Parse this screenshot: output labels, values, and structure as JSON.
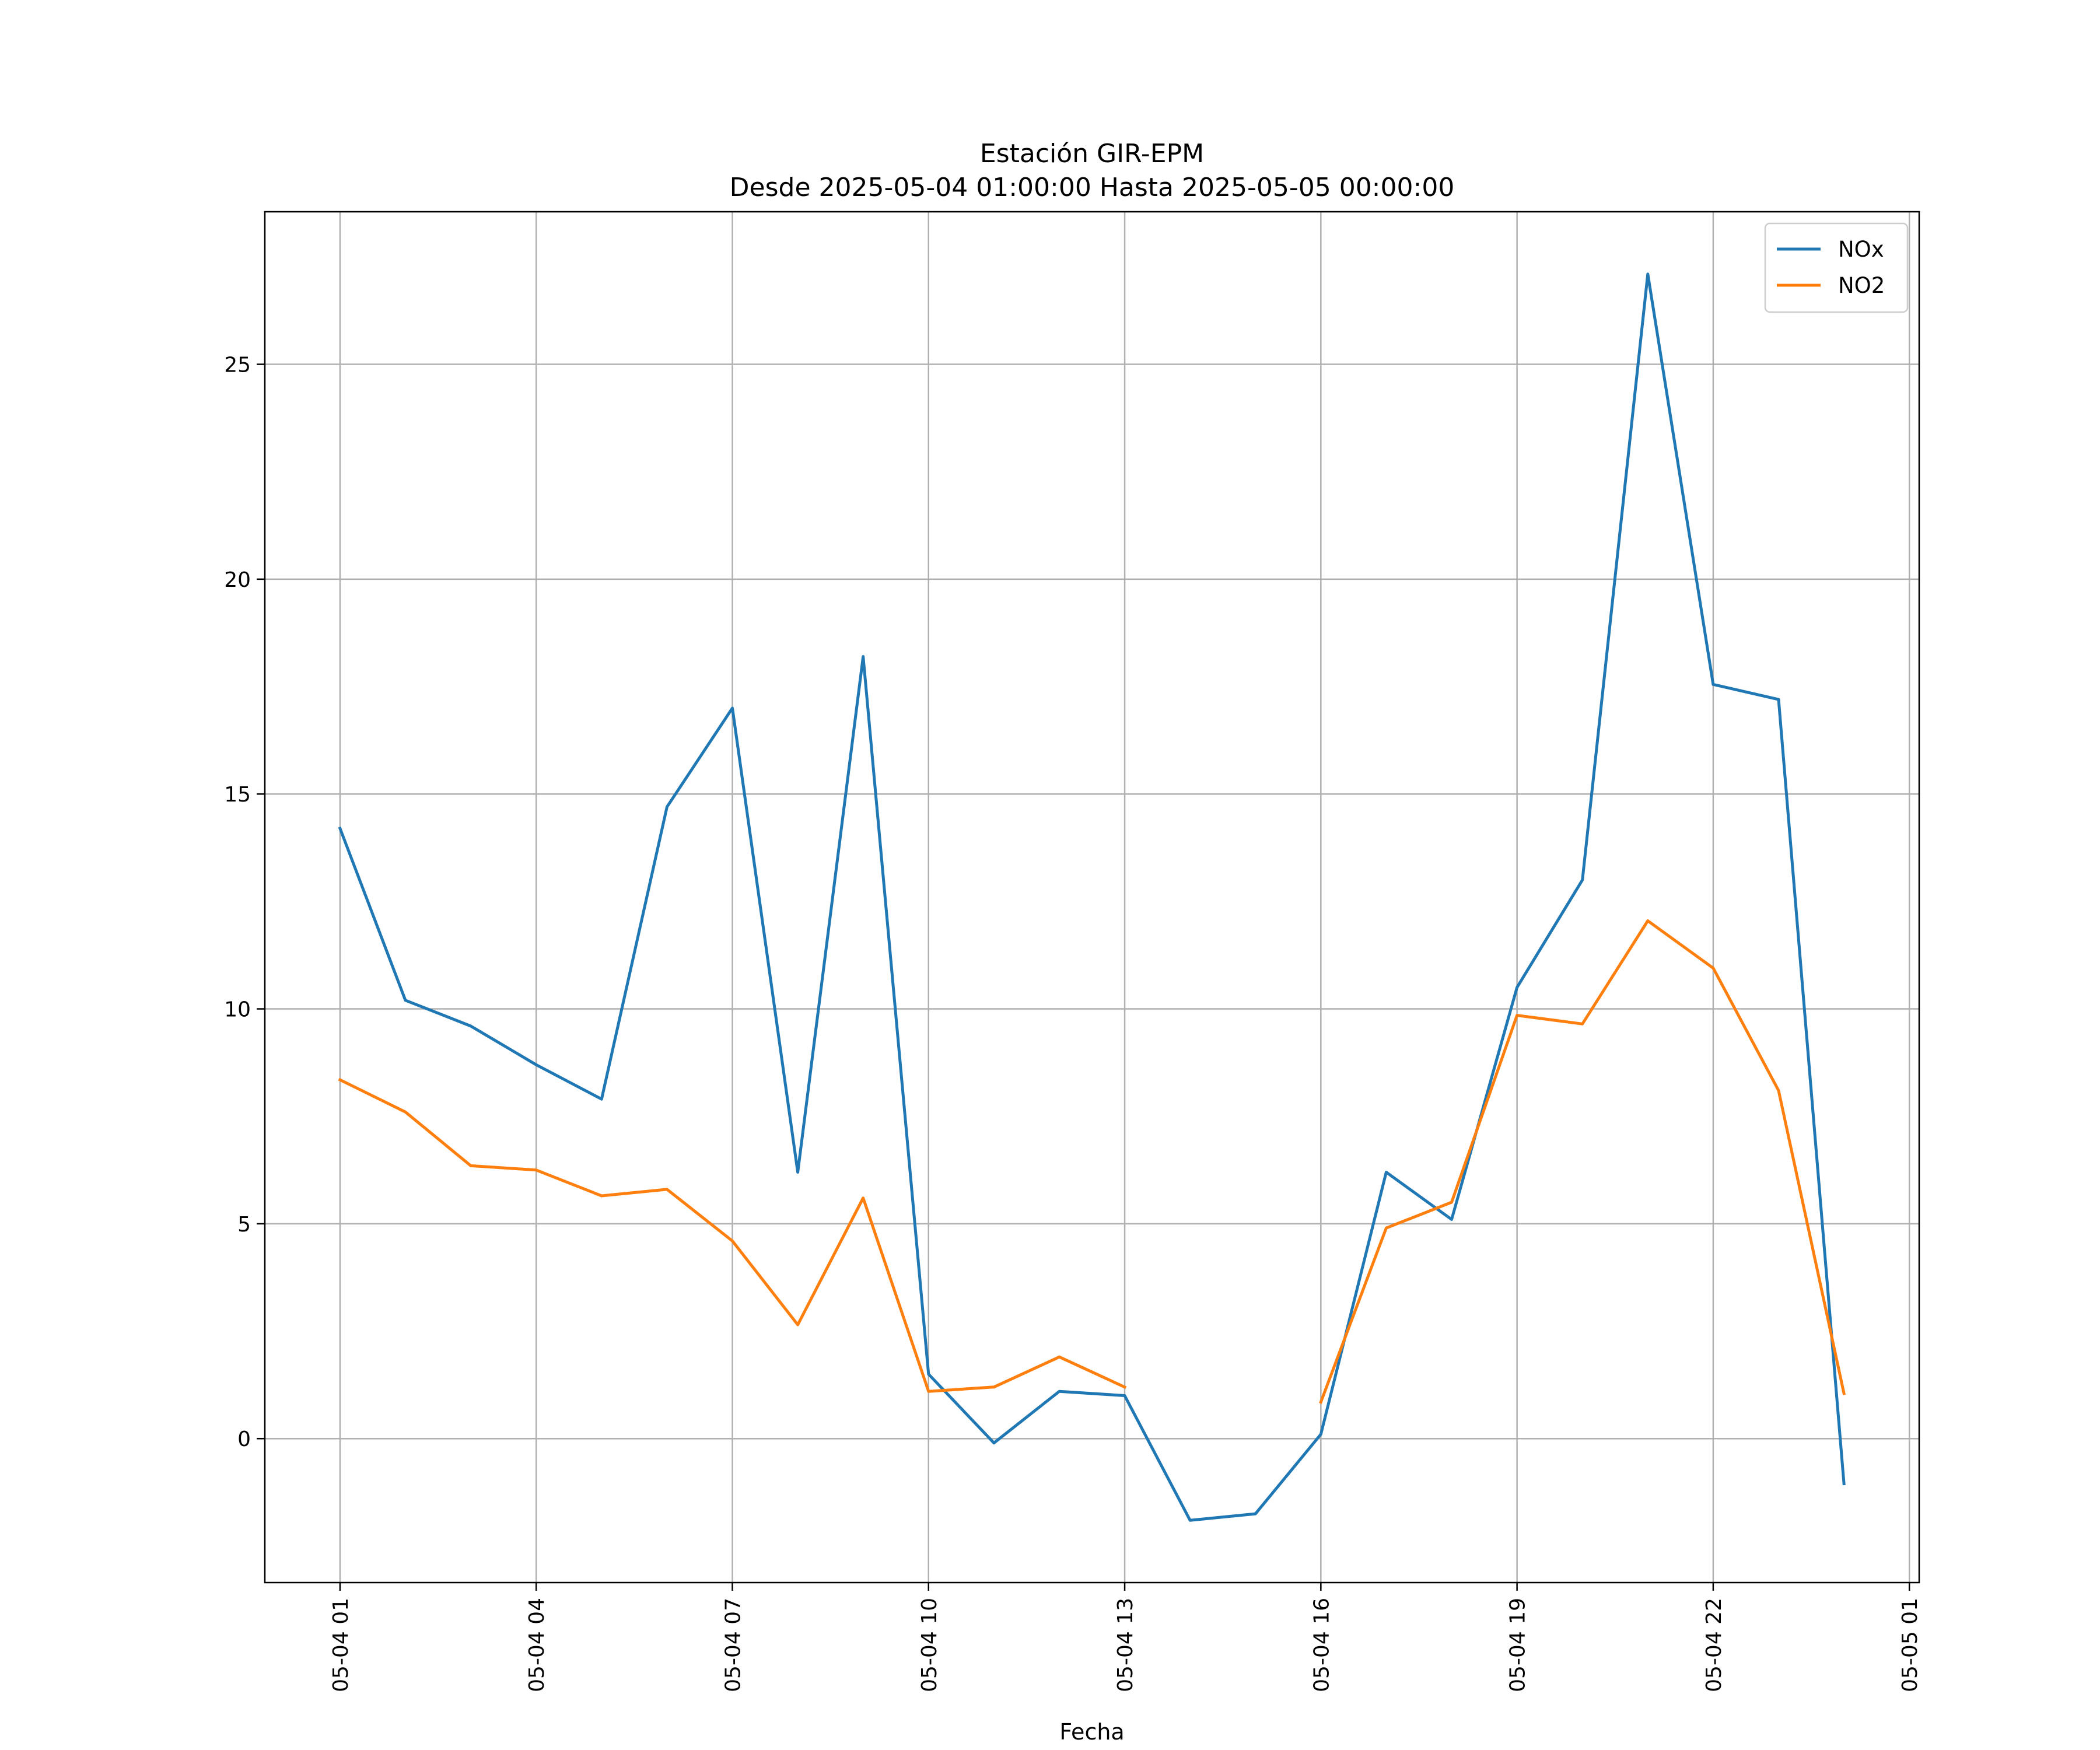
{
  "chart_data": {
    "type": "line",
    "title": [
      "Estación GIR-EPM",
      "Desde 2025-05-04 01:00:00 Hasta 2025-05-05 00:00:00"
    ],
    "xlabel": "Fecha",
    "ylabel": "",
    "x": [
      "2025-05-04 01:00",
      "2025-05-04 02:00",
      "2025-05-04 03:00",
      "2025-05-04 04:00",
      "2025-05-04 05:00",
      "2025-05-04 06:00",
      "2025-05-04 07:00",
      "2025-05-04 08:00",
      "2025-05-04 09:00",
      "2025-05-04 10:00",
      "2025-05-04 11:00",
      "2025-05-04 12:00",
      "2025-05-04 13:00",
      "2025-05-04 14:00",
      "2025-05-04 15:00",
      "2025-05-04 16:00",
      "2025-05-04 17:00",
      "2025-05-04 18:00",
      "2025-05-04 19:00",
      "2025-05-04 20:00",
      "2025-05-04 21:00",
      "2025-05-04 22:00",
      "2025-05-04 23:00",
      "2025-05-05 00:00"
    ],
    "series": [
      {
        "name": "NOx",
        "color": "#1f77b4",
        "values": [
          14.2,
          10.2,
          9.6,
          8.7,
          7.9,
          14.7,
          17.0,
          6.2,
          18.2,
          1.5,
          -0.1,
          1.1,
          1.0,
          -1.9,
          -1.75,
          0.1,
          6.2,
          5.1,
          10.5,
          13.0,
          27.1,
          17.55,
          17.2,
          -1.05
        ]
      },
      {
        "name": "NO2",
        "color": "#ff7f0e",
        "values": [
          8.35,
          7.6,
          6.35,
          6.25,
          5.65,
          5.8,
          4.6,
          2.65,
          5.6,
          1.1,
          1.2,
          1.9,
          1.2,
          null,
          null,
          0.85,
          4.9,
          5.5,
          9.85,
          9.65,
          12.05,
          10.95,
          8.1,
          1.05
        ]
      }
    ],
    "xticks": [
      "05-04 01",
      "05-04 04",
      "05-04 07",
      "05-04 10",
      "05-04 13",
      "05-04 16",
      "05-04 19",
      "05-04 22",
      "05-05 01"
    ],
    "xlim": [
      "2025-05-03 23:51",
      "2025-05-05 01:09"
    ],
    "yticks": [
      0,
      5,
      10,
      15,
      20,
      25
    ],
    "ylim": [
      -3.35,
      28.55
    ],
    "grid": true,
    "legend": "top-right"
  }
}
